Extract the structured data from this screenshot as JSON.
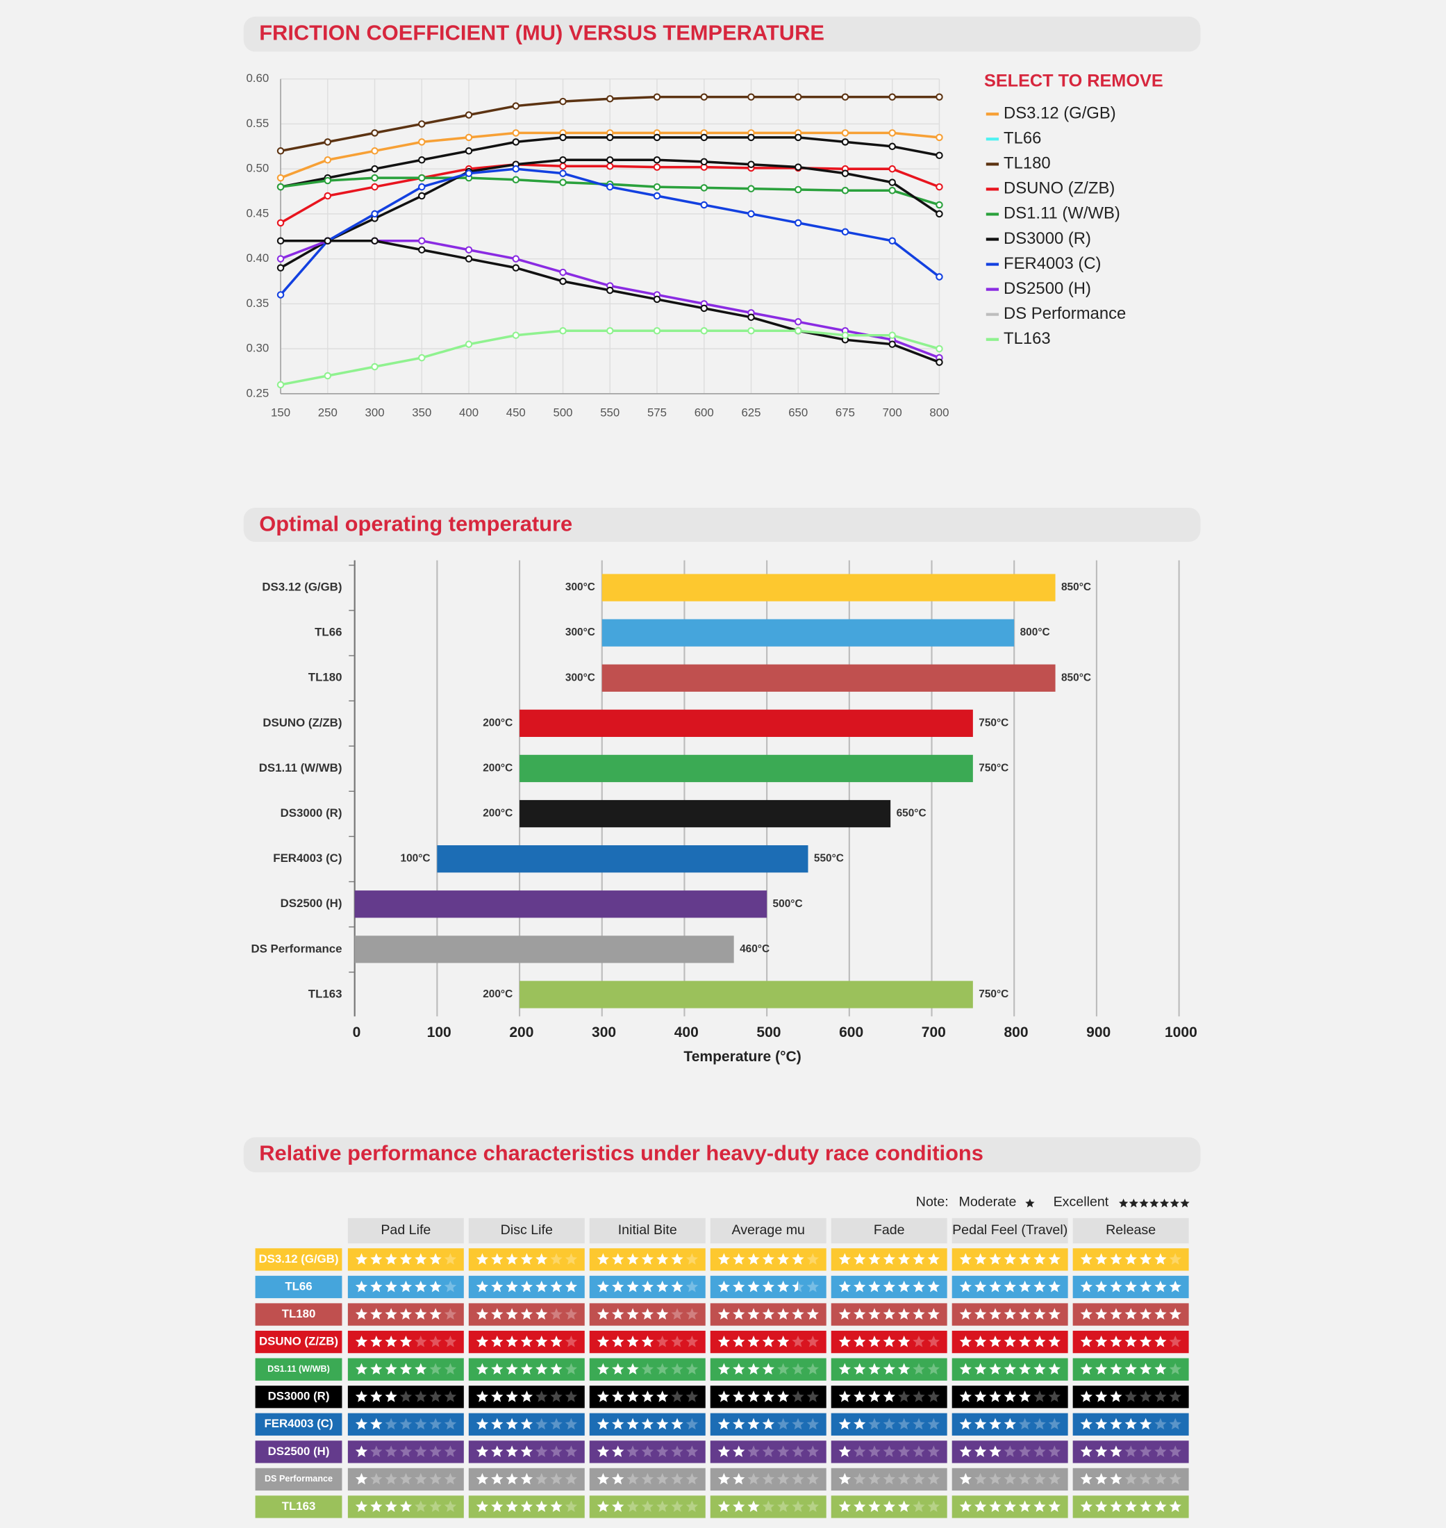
{
  "chart_data": [
    {
      "type": "line",
      "title": "FRICTION COEFFICIENT (MU) VERSUS TEMPERATURE",
      "legend_title": "SELECT TO REMOVE",
      "categories": [
        150,
        250,
        300,
        350,
        400,
        450,
        500,
        550,
        575,
        600,
        625,
        650,
        675,
        700,
        800
      ],
      "ylim": [
        0.25,
        0.6
      ],
      "yticks": [
        0.25,
        {
          "value": 0.3,
          "label": "0.30"
        },
        0.35,
        {
          "value": 0.4,
          "label": "0.40"
        },
        0.45,
        {
          "value": 0.5,
          "label": "0.50"
        },
        0.55,
        {
          "value": 0.6,
          "label": "0.60"
        }
      ],
      "grid": true,
      "legend": "right",
      "series": [
        {
          "name": "DS3.12 (G/GB)",
          "color": "#f7a035",
          "values": [
            0.49,
            0.51,
            0.52,
            0.53,
            0.535,
            0.54,
            0.54,
            0.54,
            0.54,
            0.54,
            0.54,
            0.54,
            0.54,
            0.54,
            0.535
          ]
        },
        {
          "name": "TL66",
          "color": "#4ff2f2",
          "line_color": "#111111",
          "values": [
            0.48,
            0.49,
            0.5,
            0.51,
            0.52,
            0.53,
            0.535,
            0.535,
            0.535,
            0.535,
            0.535,
            0.535,
            0.53,
            0.525,
            0.515
          ]
        },
        {
          "name": "TL180",
          "color": "#5c3312",
          "values": [
            0.52,
            0.53,
            0.54,
            0.55,
            0.56,
            0.57,
            0.575,
            0.578,
            0.58,
            0.58,
            0.58,
            0.58,
            0.58,
            0.58,
            0.58
          ]
        },
        {
          "name": "DSUNO (Z/ZB)",
          "color": "#e8141e",
          "values": [
            0.44,
            0.47,
            0.48,
            0.49,
            0.5,
            0.505,
            0.503,
            0.503,
            0.502,
            0.502,
            0.501,
            0.501,
            0.5,
            0.5,
            0.48
          ]
        },
        {
          "name": "DS1.11 (W/WB)",
          "color": "#2aa13c",
          "values": [
            0.48,
            0.487,
            0.49,
            0.49,
            0.49,
            0.488,
            0.485,
            0.483,
            0.48,
            0.479,
            0.478,
            0.477,
            0.476,
            0.476,
            0.46
          ]
        },
        {
          "name": "DS3000 (R)",
          "color": "#111111",
          "values": [
            0.39,
            0.42,
            0.445,
            0.47,
            0.497,
            0.505,
            0.51,
            0.51,
            0.51,
            0.508,
            0.505,
            0.502,
            0.495,
            0.485,
            0.45
          ]
        },
        {
          "name": "FER4003 (C)",
          "color": "#1240e0",
          "values": [
            0.36,
            0.42,
            0.45,
            0.48,
            0.495,
            0.5,
            0.495,
            0.48,
            0.47,
            0.46,
            0.45,
            0.44,
            0.43,
            0.42,
            0.38
          ]
        },
        {
          "name": "DS2500 (H)",
          "color": "#8a2be2",
          "values": [
            0.4,
            0.42,
            0.42,
            0.42,
            0.41,
            0.4,
            0.385,
            0.37,
            0.36,
            0.35,
            0.34,
            0.33,
            0.32,
            0.31,
            0.29
          ]
        },
        {
          "name": "DS Performance",
          "color": "#bdbdbd",
          "line_color": "#111111",
          "values": [
            0.42,
            0.42,
            0.42,
            0.41,
            0.4,
            0.39,
            0.375,
            0.365,
            0.355,
            0.345,
            0.335,
            0.32,
            0.31,
            0.305,
            0.285
          ]
        },
        {
          "name": "TL163",
          "color": "#8ff28f",
          "values": [
            0.26,
            0.27,
            0.28,
            0.29,
            0.305,
            0.315,
            0.32,
            0.32,
            0.32,
            0.32,
            0.32,
            0.32,
            0.315,
            0.315,
            0.3
          ]
        }
      ]
    },
    {
      "type": "floating_bar",
      "title": "Optimal operating temperature",
      "x_label": "Temperature (°C)",
      "categories": [
        "DS3.12 (G/GB)",
        "TL66",
        "TL180",
        "DSUNO (Z/ZB)",
        "DS1.11 (W/WB)",
        "DS3000 (R)",
        "FER4003 (C)",
        "DS2500 (H)",
        "DS Performance",
        "TL163"
      ],
      "low": [
        300,
        300,
        300,
        200,
        200,
        200,
        100,
        0,
        0,
        200
      ],
      "high": [
        850,
        800,
        850,
        750,
        750,
        650,
        550,
        500,
        460,
        750
      ],
      "low_labels": [
        "300°C",
        "300°C",
        "300°C",
        "200°C",
        "200°C",
        "200°C",
        "100°C",
        null,
        null,
        "200°C"
      ],
      "high_labels": [
        "850°C",
        "800°C",
        "850°C",
        "750°C",
        "750°C",
        "650°C",
        "550°C",
        "500°C",
        "460°C",
        "750°C"
      ],
      "colors": [
        "#fdc82f",
        "#45a5dc",
        "#c0504f",
        "#d9141f",
        "#3baa54",
        "#1a1a1a",
        "#1c6db5",
        "#643b8c",
        "#9e9e9e",
        "#9bc15b"
      ],
      "xlim": [
        0,
        1000
      ],
      "xticks": [
        0,
        100,
        200,
        300,
        400,
        500,
        600,
        700,
        800,
        900,
        1000
      ],
      "grid": true
    }
  ],
  "table": {
    "title": "Relative performance characteristics under heavy-duty race conditions",
    "note": {
      "label": "Note:",
      "low": "Moderate",
      "high": "Excellent"
    },
    "max_rating": 7,
    "columns": [
      "Pad Life",
      "Disc Life",
      "Initial Bite",
      "Average mu",
      "Fade",
      "Pedal Feel (Travel)",
      "Release"
    ],
    "rows": [
      {
        "name": "DS3.12 (G/GB)",
        "color": "#fdc82f",
        "ratings": [
          6,
          5,
          6,
          6,
          7,
          7,
          6
        ]
      },
      {
        "name": "TL66",
        "color": "#45a5dc",
        "ratings": [
          6,
          7,
          6,
          5.5,
          7,
          7,
          7
        ]
      },
      {
        "name": "TL180",
        "color": "#c0504f",
        "ratings": [
          6,
          5,
          5,
          7,
          7,
          7,
          7
        ]
      },
      {
        "name": "DSUNO (Z/ZB)",
        "color": "#d9141f",
        "ratings": [
          4,
          6,
          4,
          5,
          5,
          7,
          6
        ]
      },
      {
        "name": "DS1.11 (W/WB)",
        "color": "#3baa54",
        "ratings": [
          5,
          6,
          3,
          4,
          5,
          7,
          6
        ]
      },
      {
        "name": "DS3000 (R)",
        "color": "#000000",
        "ratings": [
          3,
          4,
          5,
          5,
          4,
          5,
          3
        ]
      },
      {
        "name": "FER4003 (C)",
        "color": "#1c6db5",
        "ratings": [
          2,
          4,
          6,
          4,
          2,
          4,
          5
        ]
      },
      {
        "name": "DS2500 (H)",
        "color": "#643b8c",
        "ratings": [
          1,
          4,
          2,
          2,
          1,
          3,
          3
        ]
      },
      {
        "name": "DS Performance",
        "color": "#9e9e9e",
        "ratings": [
          1,
          4,
          2,
          2,
          1,
          1,
          3
        ]
      },
      {
        "name": "TL163",
        "color": "#9bc15b",
        "ratings": [
          4,
          6,
          2,
          3,
          5,
          7,
          7
        ]
      }
    ]
  }
}
